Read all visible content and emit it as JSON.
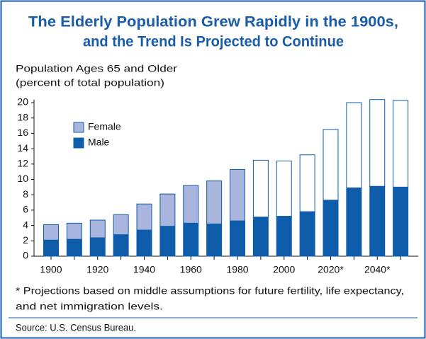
{
  "chart_data": {
    "type": "stacked_bar",
    "title": [
      "The Elderly Population Grew Rapidly in the 1900s,",
      "and the Trend Is Projected to Continue"
    ],
    "y_label": [
      "Population Ages 65 and Older",
      "(percent of total population)"
    ],
    "categories": [
      "1900",
      null,
      "1920",
      null,
      "1940",
      null,
      "1960",
      null,
      "1980",
      null,
      "2000",
      null,
      "2020*",
      null,
      "2040*",
      null
    ],
    "series": [
      {
        "name": "Male",
        "color": "#0f5cab",
        "values": [
          2.1,
          2.2,
          2.4,
          2.8,
          3.4,
          3.9,
          4.3,
          4.2,
          4.6,
          5.1,
          5.2,
          5.8,
          7.3,
          8.9,
          9.1,
          9.0
        ]
      },
      {
        "name": "Female",
        "color": "#a9b5dd",
        "values": [
          2.0,
          2.1,
          2.3,
          2.6,
          3.4,
          4.2,
          4.9,
          5.6,
          6.7,
          7.4,
          7.2,
          7.4,
          9.2,
          11.1,
          11.3,
          11.3
        ],
        "colors": [
          "#a9b5dd",
          "#a9b5dd",
          "#a9b5dd",
          "#a9b5dd",
          "#a9b5dd",
          "#a9b5dd",
          "#a9b5dd",
          "#a9b5dd",
          "#a9b5dd",
          "#ffffff",
          "#ffffff",
          "#ffffff",
          "#ffffff",
          "#ffffff",
          "#ffffff",
          "#ffffff"
        ]
      }
    ],
    "ylim": [
      0,
      20
    ],
    "yticks": [
      0,
      2,
      4,
      6,
      8,
      10,
      12,
      14,
      16,
      18,
      20
    ],
    "notes": [
      "* Projections based on middle assumptions for future fertility, life expectancy,",
      "and net immigration levels."
    ],
    "source": "Source: U.S. Census Bureau."
  }
}
